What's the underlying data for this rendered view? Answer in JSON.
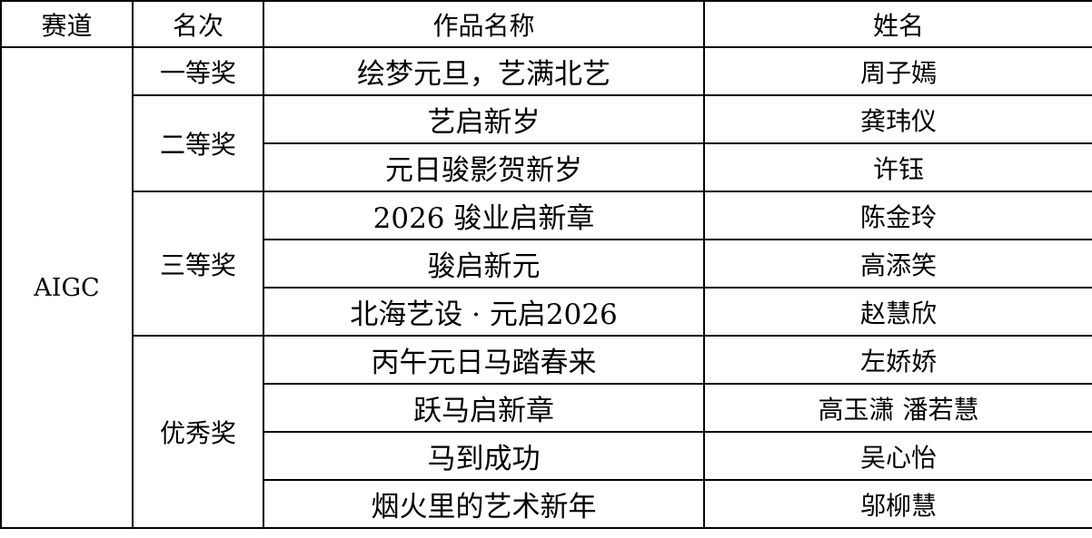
{
  "headers": [
    "赛道",
    "名次",
    "作品名称",
    "姓名"
  ],
  "track": "AIGC",
  "groups": [
    {
      "rank": "一等奖",
      "entries": [
        {
          "title": "绘梦元旦，艺满北艺",
          "name": "周子嫣"
        }
      ]
    },
    {
      "rank": "二等奖",
      "entries": [
        {
          "title": "艺启新岁",
          "name": "龚玮仪"
        },
        {
          "title": "元日骏影贺新岁",
          "name": "许钰"
        }
      ]
    },
    {
      "rank": "三等奖",
      "entries": [
        {
          "title": "2026 骏业启新章",
          "name": "陈金玲"
        },
        {
          "title": "骏启新元",
          "name": "高添笑"
        },
        {
          "title": "北海艺设 · 元启2026",
          "name": "赵慧欣"
        }
      ]
    },
    {
      "rank": "优秀奖",
      "entries": [
        {
          "title": "丙午元日马踏春来",
          "name": "左娇娇"
        },
        {
          "title": "跃马启新章",
          "name": "高玉潇 潘若慧"
        },
        {
          "title": "马到成功",
          "name": "吴心怡"
        },
        {
          "title": "烟火里的艺术新年",
          "name": "邬柳慧"
        }
      ]
    }
  ]
}
